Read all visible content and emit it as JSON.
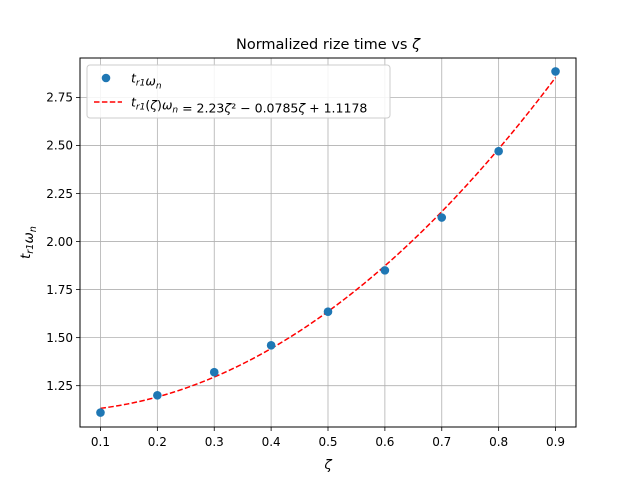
{
  "chart_data": {
    "type": "scatter",
    "title": "Normalized rize time vs ζ",
    "xlabel": "ζ",
    "ylabel": "t_r1 ω_n",
    "xlim": [
      0.064,
      0.936
    ],
    "ylim": [
      1.035,
      2.955
    ],
    "xticks": [
      0.1,
      0.2,
      0.3,
      0.4,
      0.5,
      0.6,
      0.7,
      0.8,
      0.9
    ],
    "xtick_labels": [
      "0.1",
      "0.2",
      "0.3",
      "0.4",
      "0.5",
      "0.6",
      "0.7",
      "0.8",
      "0.9"
    ],
    "yticks": [
      1.25,
      1.5,
      1.75,
      2.0,
      2.25,
      2.5,
      2.75
    ],
    "ytick_labels": [
      "1.25",
      "1.50",
      "1.75",
      "2.00",
      "2.25",
      "2.50",
      "2.75"
    ],
    "grid": true,
    "legend_position": "top-left",
    "series": [
      {
        "name": "t_r1 ω_n",
        "kind": "scatter",
        "color": "#1f77b4",
        "x": [
          0.1,
          0.2,
          0.3,
          0.4,
          0.5,
          0.6,
          0.7,
          0.8,
          0.9
        ],
        "y": [
          1.11,
          1.2,
          1.32,
          1.46,
          1.635,
          1.85,
          2.125,
          2.47,
          2.885
        ]
      },
      {
        "name": "t_r1(ζ)ω_n = 2.23ζ² − 0.0785ζ + 1.1178",
        "kind": "line",
        "style": "dashed",
        "color": "#ff0000",
        "coefficients": [
          2.23,
          -0.0785,
          1.1178
        ]
      }
    ]
  }
}
